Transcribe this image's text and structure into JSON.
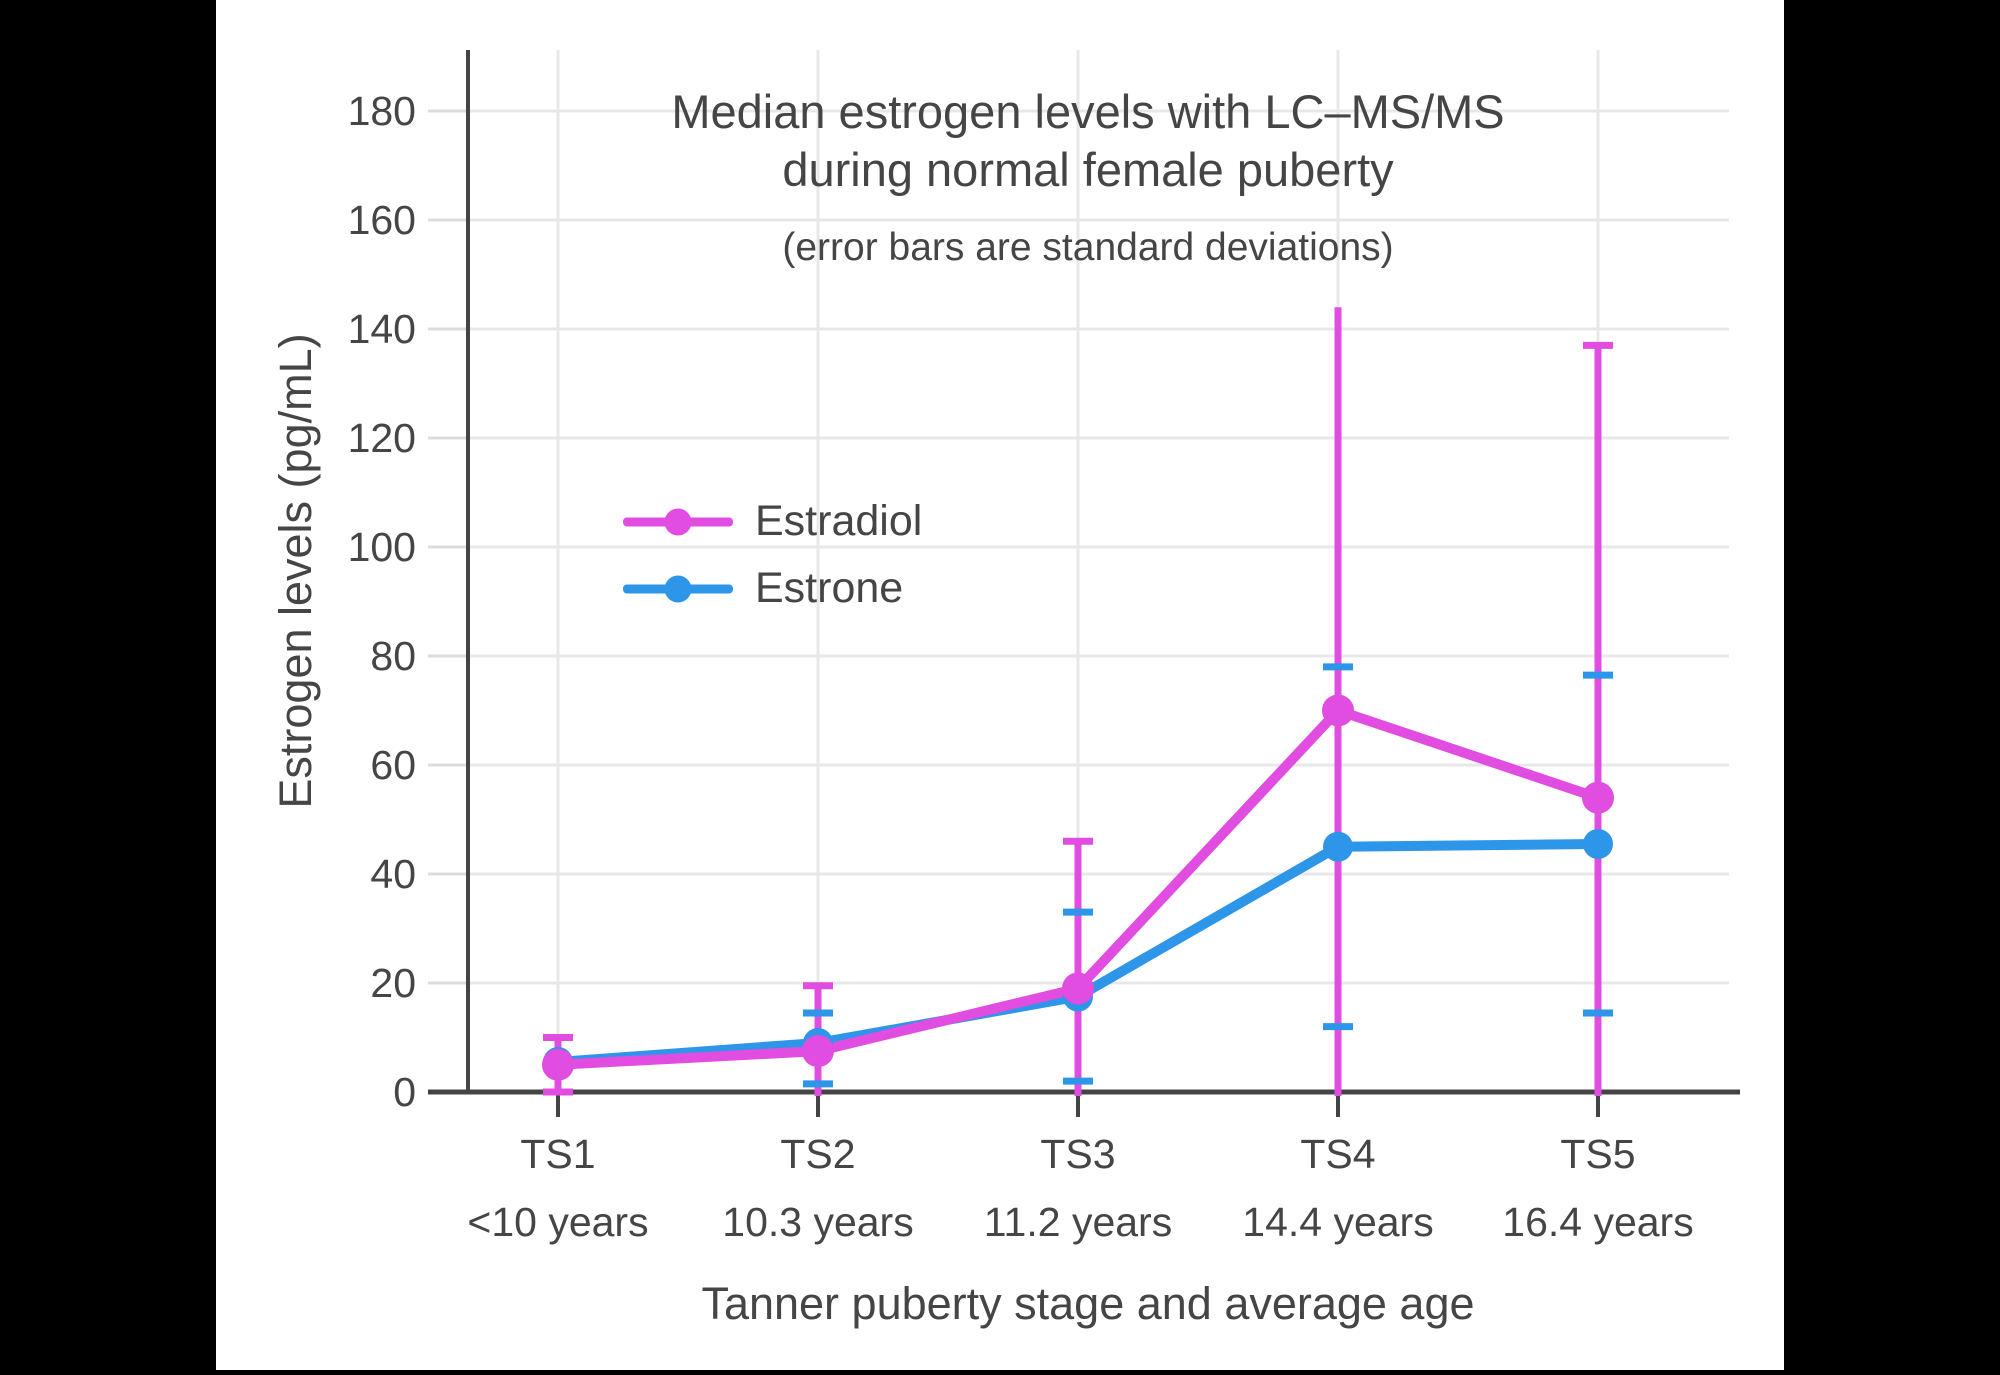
{
  "title": {
    "line1": "Median estrogen levels with LC–MS/MS",
    "line2": "during normal female puberty",
    "subtitle": "(error bars are standard deviations)"
  },
  "axes": {
    "y": {
      "label": "Estrogen levels (pg/mL)",
      "ticks": [
        0,
        20,
        40,
        60,
        80,
        100,
        120,
        140,
        160,
        180
      ],
      "range": [
        0,
        191
      ]
    },
    "x": {
      "label": "Tanner puberty stage and average age",
      "categories": [
        {
          "stage": "TS1",
          "age": "<10 years"
        },
        {
          "stage": "TS2",
          "age": "10.3 years"
        },
        {
          "stage": "TS3",
          "age": "11.2 years"
        },
        {
          "stage": "TS4",
          "age": "14.4 years"
        },
        {
          "stage": "TS5",
          "age": "16.4 years"
        }
      ]
    }
  },
  "legend": [
    {
      "label": "Estradiol",
      "color": "#E14CE1"
    },
    {
      "label": "Estrone",
      "color": "#2E96E9"
    }
  ],
  "colors": {
    "background": "#000000",
    "plot_background": "#ffffff",
    "text": "#454545",
    "axis_line": "#444444",
    "gridline": "#E8E8E8",
    "y_tick": "#DCDCDC",
    "estradiol": "#E14CE1",
    "estrone": "#2E96E9"
  },
  "chart_data": {
    "type": "line",
    "title": "Median estrogen levels with LC–MS/MS during normal female puberty",
    "subtitle": "(error bars are standard deviations)",
    "xlabel": "Tanner puberty stage and average age",
    "ylabel": "Estrogen levels (pg/mL)",
    "ylim": [
      0,
      191
    ],
    "grid": true,
    "legend_position": "inside-left",
    "categories": [
      "TS1 <10 years",
      "TS2 10.3 years",
      "TS3 11.2 years",
      "TS4 14.4 years",
      "TS5 16.4 years"
    ],
    "series": [
      {
        "name": "Estradiol",
        "color": "#E14CE1",
        "values": [
          5,
          7.5,
          19,
          70,
          54
        ],
        "error_low": [
          0,
          0,
          0,
          0,
          0
        ],
        "error_high": [
          10,
          19.5,
          46,
          144,
          137
        ],
        "cap_low": [
          true,
          false,
          false,
          false,
          false
        ],
        "cap_high": [
          true,
          true,
          true,
          false,
          true
        ]
      },
      {
        "name": "Estrone",
        "color": "#2E96E9",
        "values": [
          5.5,
          9,
          17.5,
          45,
          45.5
        ],
        "error_low": [
          null,
          1.5,
          2,
          12,
          14.5
        ],
        "error_high": [
          null,
          14.5,
          33,
          78,
          76.5
        ],
        "cap_low": [
          false,
          true,
          true,
          true,
          true
        ],
        "cap_high": [
          false,
          true,
          true,
          true,
          true
        ]
      }
    ]
  }
}
